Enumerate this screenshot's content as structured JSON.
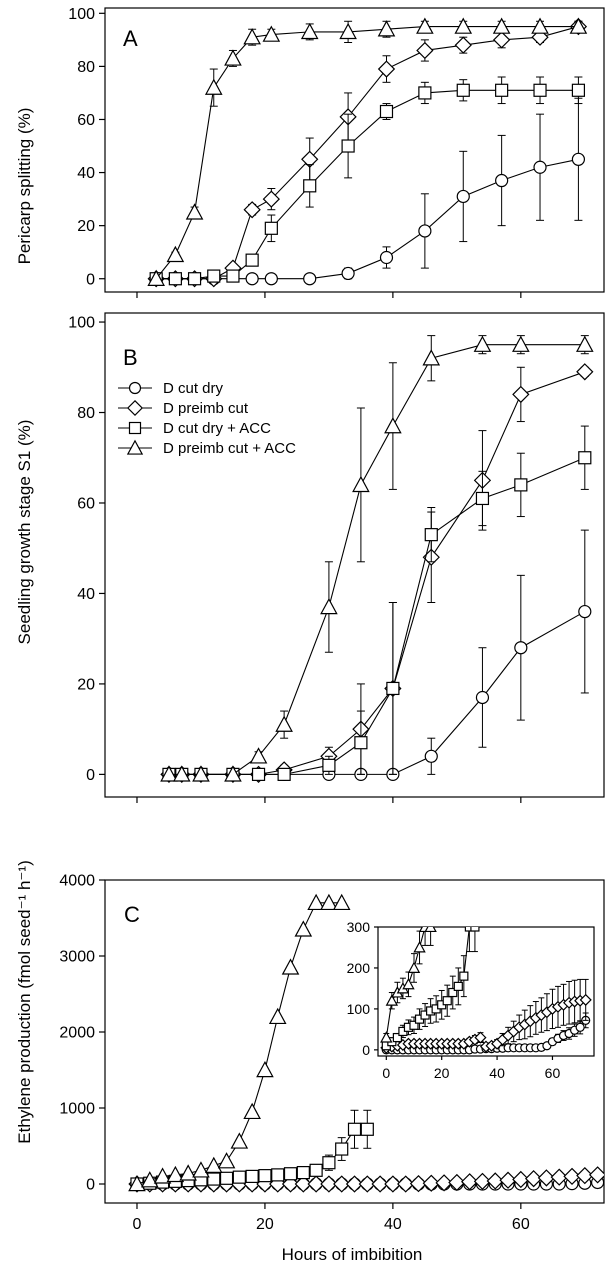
{
  "chart_data": [
    {
      "panel": "A",
      "type": "line",
      "xlabel": "",
      "ylabel": "Pericarp splitting (%)",
      "xlim": [
        -5,
        73
      ],
      "ylim": [
        -5,
        102
      ],
      "xticks": [
        0,
        20,
        40,
        60
      ],
      "yticks": [
        0,
        20,
        40,
        60,
        80,
        100
      ],
      "series": [
        {
          "marker": "circle",
          "x": [
            3,
            6,
            9,
            12,
            18,
            21,
            27,
            33,
            39,
            45,
            51,
            57,
            63,
            69
          ],
          "y": [
            0,
            0,
            0,
            0,
            0,
            0,
            0,
            2,
            8,
            18,
            31,
            37,
            42,
            45
          ],
          "err": [
            0,
            0,
            0,
            0,
            0,
            0,
            0,
            2,
            4,
            14,
            17,
            17,
            20,
            23
          ]
        },
        {
          "marker": "diamond",
          "x": [
            3,
            6,
            9,
            12,
            15,
            18,
            21,
            27,
            33,
            39,
            45,
            51,
            57,
            63,
            69
          ],
          "y": [
            0,
            0,
            0,
            0,
            4,
            26,
            30,
            45,
            61,
            79,
            86,
            88,
            90,
            91,
            95
          ],
          "err": [
            0,
            0,
            0,
            0,
            1,
            2,
            4,
            8,
            9,
            5,
            4,
            3,
            3,
            2,
            2
          ]
        },
        {
          "marker": "square",
          "x": [
            3,
            6,
            9,
            12,
            15,
            18,
            21,
            27,
            33,
            39,
            45,
            51,
            57,
            63,
            69
          ],
          "y": [
            0,
            0,
            0,
            1,
            1,
            7,
            19,
            35,
            50,
            63,
            70,
            71,
            71,
            71,
            71
          ],
          "err": [
            0,
            0,
            0,
            1,
            1,
            1,
            5,
            8,
            12,
            3,
            4,
            4,
            5,
            5,
            5
          ]
        },
        {
          "marker": "triangle",
          "x": [
            3,
            6,
            9,
            12,
            15,
            18,
            21,
            27,
            33,
            39,
            45,
            51,
            57,
            63,
            69
          ],
          "y": [
            0,
            9,
            25,
            72,
            83,
            91,
            92,
            93,
            93,
            94,
            95,
            95,
            95,
            95,
            95
          ],
          "err": [
            0,
            1,
            2,
            7,
            3,
            3,
            2,
            3,
            4,
            3,
            2,
            2,
            2,
            2,
            2
          ]
        }
      ]
    },
    {
      "panel": "B",
      "type": "line",
      "xlabel": "",
      "ylabel": "Seedling growth stage S1 (%)",
      "xlim": [
        -5,
        73
      ],
      "ylim": [
        -5,
        102
      ],
      "xticks": [
        0,
        20,
        40,
        60
      ],
      "yticks": [
        0,
        20,
        40,
        60,
        80,
        100
      ],
      "legend": {
        "position": "upper-left",
        "entries": [
          {
            "marker": "circle",
            "label": "D cut dry"
          },
          {
            "marker": "diamond",
            "label": "D preimb cut"
          },
          {
            "marker": "square",
            "label": "D cut dry + ACC"
          },
          {
            "marker": "triangle",
            "label": "D preimb cut + ACC"
          }
        ]
      },
      "series": [
        {
          "marker": "circle",
          "x": [
            5,
            7,
            10,
            15,
            19,
            23,
            30,
            35,
            40,
            46,
            54,
            60,
            70
          ],
          "y": [
            0,
            0,
            0,
            0,
            0,
            0,
            0,
            0,
            0,
            4,
            17,
            28,
            36
          ],
          "err": [
            0,
            0,
            0,
            0,
            0,
            0,
            0,
            0,
            0,
            4,
            11,
            16,
            18
          ]
        },
        {
          "marker": "diamond",
          "x": [
            5,
            7,
            10,
            15,
            19,
            23,
            30,
            35,
            40,
            46,
            54,
            60,
            70
          ],
          "y": [
            0,
            0,
            0,
            0,
            0,
            1,
            4,
            10,
            19,
            48,
            65,
            84,
            89
          ],
          "err": [
            0,
            0,
            0,
            0,
            0,
            1,
            2,
            10,
            19,
            10,
            11,
            6,
            1
          ]
        },
        {
          "marker": "square",
          "x": [
            5,
            7,
            10,
            15,
            19,
            23,
            30,
            35,
            40,
            46,
            54,
            60,
            70
          ],
          "y": [
            0,
            0,
            0,
            0,
            0,
            0,
            2,
            7,
            19,
            53,
            61,
            64,
            70
          ],
          "err": [
            0,
            0,
            0,
            0,
            0,
            0,
            2,
            7,
            19,
            6,
            6,
            7,
            7
          ]
        },
        {
          "marker": "triangle",
          "x": [
            5,
            7,
            10,
            15,
            19,
            23,
            30,
            35,
            40,
            46,
            54,
            60,
            70
          ],
          "y": [
            0,
            0,
            0,
            0,
            4,
            11,
            37,
            64,
            77,
            92,
            95,
            95,
            95
          ],
          "err": [
            0,
            0,
            0,
            0,
            1,
            3,
            10,
            17,
            14,
            5,
            2,
            2,
            2
          ]
        }
      ]
    },
    {
      "panel": "C",
      "type": "line",
      "xlabel": "Hours of imbibition",
      "ylabel": "Ethylene production (fmol seed⁻¹ h⁻¹)",
      "xlim": [
        -5,
        73
      ],
      "ylim": [
        -250,
        4000
      ],
      "xticks": [
        0,
        20,
        40,
        60
      ],
      "yticks": [
        0,
        1000,
        2000,
        3000,
        4000
      ],
      "series": [
        {
          "marker": "circle",
          "x": [
            0,
            2,
            4,
            6,
            8,
            10,
            12,
            14,
            16,
            18,
            20,
            22,
            24,
            26,
            28,
            30,
            32,
            34,
            36,
            38,
            40,
            42,
            44,
            46,
            48,
            50,
            52,
            54,
            56,
            58,
            60,
            62,
            64,
            66,
            68,
            70,
            72
          ],
          "y": [
            0,
            0,
            0,
            0,
            0,
            0,
            0,
            0,
            0,
            0,
            0,
            0,
            0,
            0,
            0,
            0,
            0,
            0,
            0,
            0,
            0,
            0,
            0,
            0,
            0,
            0,
            0,
            0,
            0,
            0,
            0,
            0,
            0,
            0,
            5,
            10,
            20
          ]
        },
        {
          "marker": "diamond",
          "x": [
            0,
            2,
            4,
            6,
            8,
            10,
            12,
            14,
            16,
            18,
            20,
            22,
            24,
            26,
            28,
            30,
            32,
            34,
            36,
            38,
            40,
            42,
            44,
            46,
            48,
            50,
            52,
            54,
            56,
            58,
            60,
            62,
            64,
            66,
            68,
            70,
            72
          ],
          "y": [
            0,
            0,
            0,
            0,
            0,
            0,
            0,
            0,
            0,
            0,
            0,
            0,
            0,
            0,
            0,
            0,
            0,
            0,
            0,
            0,
            0,
            0,
            5,
            10,
            15,
            20,
            30,
            35,
            40,
            50,
            60,
            70,
            80,
            90,
            100,
            110,
            120
          ]
        },
        {
          "marker": "square",
          "x": [
            0,
            2,
            4,
            6,
            8,
            10,
            12,
            14,
            16,
            18,
            20,
            22,
            24,
            26,
            28,
            30,
            32,
            34,
            36
          ],
          "y": [
            0,
            10,
            25,
            35,
            45,
            55,
            65,
            75,
            90,
            100,
            110,
            120,
            135,
            150,
            180,
            280,
            460,
            720,
            720
          ],
          "err": [
            0,
            5,
            10,
            12,
            15,
            18,
            20,
            20,
            25,
            30,
            35,
            40,
            50,
            60,
            70,
            100,
            150,
            250,
            250
          ]
        },
        {
          "marker": "triangle",
          "x": [
            0,
            2,
            4,
            6,
            8,
            10,
            12,
            14,
            16,
            18,
            20,
            22,
            24,
            26,
            28,
            30,
            32
          ],
          "y": [
            0,
            50,
            100,
            120,
            140,
            180,
            240,
            300,
            560,
            950,
            1500,
            2200,
            2850,
            3350,
            3700,
            3700,
            3700
          ]
        }
      ],
      "inset": {
        "xlim": [
          -3,
          75
        ],
        "ylim": [
          -15,
          300
        ],
        "xticks": [
          0,
          20,
          40,
          60
        ],
        "yticks": [
          0,
          100,
          200,
          300
        ],
        "series": [
          {
            "marker": "circle",
            "x": [
              0,
              2,
              4,
              6,
              8,
              10,
              12,
              14,
              16,
              18,
              20,
              22,
              24,
              26,
              28,
              30,
              32,
              34,
              36,
              38,
              40,
              42,
              44,
              46,
              48,
              50,
              52,
              54,
              56,
              58,
              60,
              62,
              64,
              66,
              68,
              70,
              72
            ],
            "y": [
              0,
              0,
              0,
              0,
              0,
              0,
              0,
              0,
              0,
              0,
              0,
              0,
              0,
              0,
              0,
              0,
              2,
              2,
              3,
              3,
              4,
              4,
              5,
              5,
              5,
              5,
              5,
              5,
              6,
              10,
              20,
              28,
              35,
              40,
              48,
              55,
              72
            ],
            "err": [
              0,
              0,
              0,
              0,
              0,
              0,
              0,
              0,
              0,
              0,
              0,
              0,
              0,
              0,
              0,
              0,
              2,
              2,
              3,
              3,
              3,
              3,
              3,
              3,
              3,
              3,
              3,
              3,
              4,
              6,
              8,
              10,
              12,
              14,
              15,
              16,
              18
            ]
          },
          {
            "marker": "diamond",
            "x": [
              0,
              2,
              4,
              6,
              8,
              10,
              12,
              14,
              16,
              18,
              20,
              22,
              24,
              26,
              28,
              30,
              32,
              34,
              36,
              38,
              40,
              42,
              44,
              46,
              48,
              50,
              52,
              54,
              56,
              58,
              60,
              62,
              64,
              66,
              68,
              70,
              72
            ],
            "y": [
              5,
              8,
              10,
              12,
              15,
              15,
              15,
              15,
              15,
              15,
              15,
              15,
              15,
              15,
              15,
              20,
              25,
              30,
              8,
              10,
              15,
              25,
              35,
              45,
              55,
              62,
              70,
              78,
              85,
              92,
              100,
              105,
              110,
              115,
              118,
              120,
              122
            ],
            "err": [
              3,
              3,
              4,
              4,
              5,
              5,
              5,
              5,
              5,
              5,
              5,
              5,
              5,
              5,
              5,
              8,
              10,
              12,
              5,
              8,
              10,
              15,
              20,
              25,
              30,
              35,
              38,
              40,
              42,
              45,
              48,
              50,
              50,
              52,
              52,
              52,
              50
            ]
          },
          {
            "marker": "square",
            "x": [
              0,
              2,
              4,
              6,
              8,
              10,
              12,
              14,
              16,
              18,
              20,
              22,
              24,
              26,
              28,
              30,
              32
            ],
            "y": [
              10,
              20,
              30,
              45,
              55,
              60,
              75,
              85,
              95,
              100,
              110,
              120,
              140,
              155,
              180,
              300,
              300
            ],
            "err": [
              5,
              8,
              10,
              15,
              18,
              20,
              25,
              28,
              30,
              32,
              35,
              38,
              40,
              45,
              50,
              60,
              60
            ]
          },
          {
            "marker": "triangle",
            "x": [
              0,
              2,
              4,
              6,
              8,
              10,
              12,
              14,
              16
            ],
            "y": [
              30,
              120,
              140,
              150,
              160,
              200,
              250,
              300,
              300
            ],
            "err": [
              10,
              20,
              25,
              25,
              30,
              35,
              40,
              45,
              45
            ]
          }
        ]
      }
    }
  ],
  "panel_labels": {
    "a": "A",
    "b": "B",
    "c": "C"
  }
}
